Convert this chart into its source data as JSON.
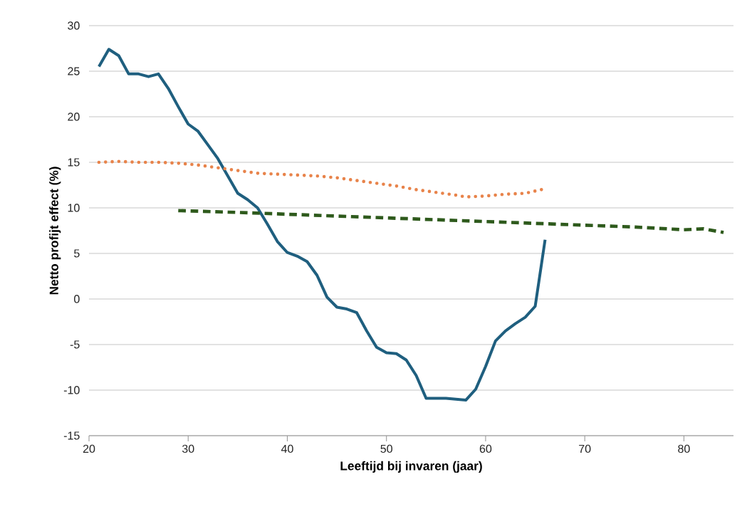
{
  "chart_data": {
    "type": "line",
    "xlabel": "Leeftijd bij invaren (jaar)",
    "ylabel": "Netto profijt effect (%)",
    "xlim": [
      20,
      85
    ],
    "xticks": [
      20,
      30,
      40,
      50,
      60,
      70,
      80
    ],
    "ylim": [
      -15,
      30
    ],
    "yticks": [
      -15,
      -10,
      -5,
      0,
      5,
      10,
      15,
      20,
      25,
      30
    ],
    "grid": "y",
    "marker": "none",
    "series": [
      {
        "color": "#1f5f7f",
        "line_style": "solid",
        "x": [
          21,
          22,
          23,
          24,
          25,
          26,
          27,
          28,
          29,
          30,
          31,
          32,
          33,
          34,
          35,
          36,
          37,
          38,
          39,
          40,
          41,
          42,
          43,
          44,
          45,
          46,
          47,
          48,
          49,
          50,
          51,
          52,
          53,
          54,
          55,
          56,
          57,
          58,
          59,
          60,
          61,
          62,
          63,
          64,
          65,
          66
        ],
        "values": [
          25.5,
          27.4,
          26.7,
          24.7,
          24.7,
          24.4,
          24.7,
          23.1,
          21.1,
          19.2,
          18.4,
          16.9,
          15.4,
          13.5,
          11.6,
          10.9,
          10.0,
          8.2,
          6.3,
          5.1,
          4.7,
          4.1,
          2.6,
          0.2,
          -0.9,
          -1.1,
          -1.5,
          -3.5,
          -5.3,
          -5.9,
          -6.0,
          -6.7,
          -8.4,
          -10.9,
          -10.9,
          -10.9,
          -11.0,
          -11.1,
          -9.9,
          -7.4,
          -4.6,
          -3.5,
          -2.7,
          -2.0,
          -0.8,
          6.5
        ]
      },
      {
        "color": "#e8834a",
        "line_style": "dotted",
        "x": [
          21,
          23,
          25,
          27,
          29,
          31,
          33,
          35,
          37,
          39,
          41,
          43,
          45,
          47,
          49,
          51,
          53,
          55,
          57,
          58,
          60,
          62,
          64,
          66
        ],
        "values": [
          15.0,
          15.1,
          15.0,
          15.0,
          14.9,
          14.7,
          14.4,
          14.1,
          13.8,
          13.7,
          13.6,
          13.5,
          13.3,
          13.0,
          12.7,
          12.4,
          12.0,
          11.7,
          11.4,
          11.2,
          11.3,
          11.5,
          11.6,
          12.1
        ]
      },
      {
        "color": "#2e5a1c",
        "line_style": "dashed",
        "x": [
          29,
          35,
          40,
          45,
          50,
          55,
          60,
          65,
          70,
          75,
          80,
          82,
          84
        ],
        "values": [
          9.7,
          9.5,
          9.3,
          9.1,
          8.9,
          8.7,
          8.5,
          8.3,
          8.1,
          7.9,
          7.6,
          7.7,
          7.3
        ]
      }
    ]
  }
}
